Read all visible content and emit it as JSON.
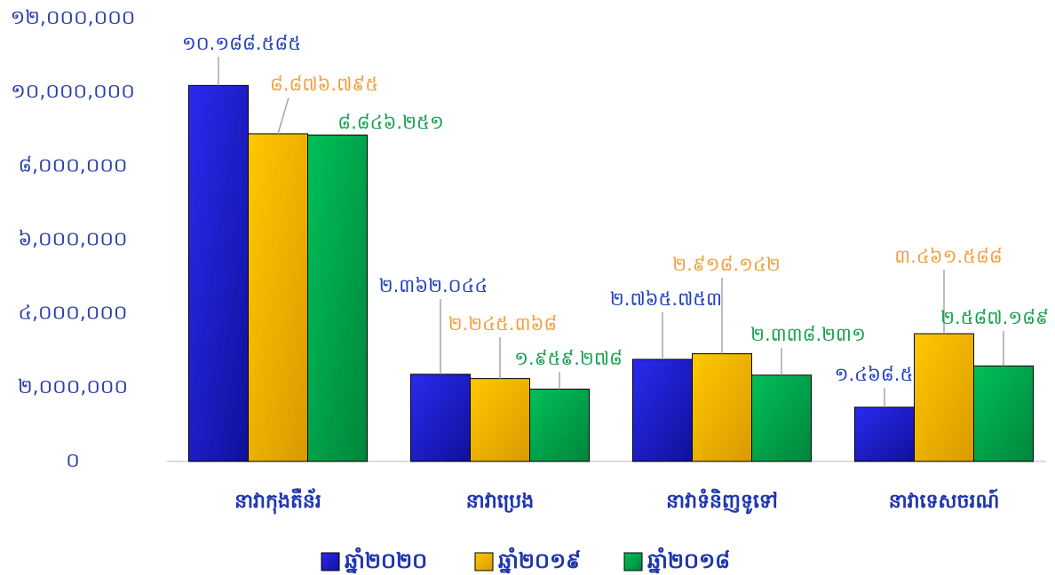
{
  "chart_data": {
    "type": "bar",
    "categories": [
      "នាវាកុងតឺន័រ",
      "នាវាប្រេង",
      "នាវាទំនិញទូទៅ",
      "នាវាទេសចរណ៍"
    ],
    "series": [
      {
        "name": "ឆ្នាំ២០២០",
        "color": "#1a1ad8",
        "label_color": "#1f3fbf",
        "values": [
          10188585,
          2362044,
          2765753,
          1468587
        ],
        "value_labels": [
          "១០.១៨៨.៥៨៥",
          "២.៣៦២.០៤៤",
          "២.៧៦៥.៧៥៣",
          "១.៤៦៨.៥៨៧"
        ]
      },
      {
        "name": "ឆ្នាំ២០១៩",
        "color": "#f5b800",
        "label_color": "#f0a040",
        "values": [
          8876795,
          2245368,
          2918142,
          3461588
        ],
        "value_labels": [
          "៨.៨៧៦.៧៩៥",
          "២.២៤៥.៣៦៨",
          "២.៩១៨.១៤២",
          "៣.៤៦១.៥៨៨"
        ]
      },
      {
        "name": "ឆ្នាំ២០១៨",
        "color": "#00b050",
        "label_color": "#18a050",
        "values": [
          8846251,
          1959278,
          2338231,
          2587189
        ],
        "value_labels": [
          "៨.៨៤៦.២៥១",
          "១.៩៥៩.២៧៨",
          "២.៣៣៨.២៣១",
          "២.៥៨៧.១៨៩"
        ]
      }
    ],
    "ylim": [
      0,
      12000000
    ],
    "yticks": [
      {
        "value": 0,
        "label": "០"
      },
      {
        "value": 2000000,
        "label": "២,០០០,០០០"
      },
      {
        "value": 4000000,
        "label": "៤,០០០,០០០"
      },
      {
        "value": 6000000,
        "label": "៦,០០០,០០០"
      },
      {
        "value": 8000000,
        "label": "៨,០០០,០០០"
      },
      {
        "value": 10000000,
        "label": "១០,០០០,០០០"
      },
      {
        "value": 12000000,
        "label": "១២,០០០,០០០"
      }
    ],
    "legend": "bottom"
  }
}
